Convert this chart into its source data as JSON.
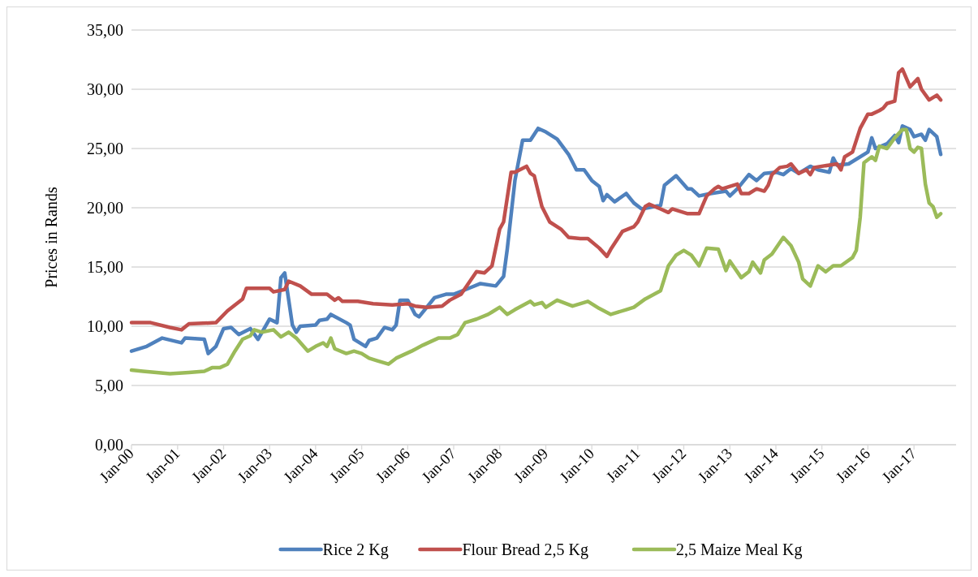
{
  "chart_data": {
    "type": "line",
    "ylabel": "Prices in Rands",
    "xlim": [
      "2000-01",
      "2017-12"
    ],
    "xticks": [
      {
        "value": "2000-01",
        "label": "Jan-00"
      },
      {
        "value": "2001-01",
        "label": "Jan-01"
      },
      {
        "value": "2002-01",
        "label": "Jan-02"
      },
      {
        "value": "2003-01",
        "label": "Jan-03"
      },
      {
        "value": "2004-01",
        "label": "Jan-04"
      },
      {
        "value": "2005-01",
        "label": "Jan-05"
      },
      {
        "value": "2006-01",
        "label": "Jan-06"
      },
      {
        "value": "2007-01",
        "label": "Jan-07"
      },
      {
        "value": "2008-01",
        "label": "Jan-08"
      },
      {
        "value": "2009-01",
        "label": "Jan-09"
      },
      {
        "value": "2010-01",
        "label": "Jan-10"
      },
      {
        "value": "2011-01",
        "label": "Jan-11"
      },
      {
        "value": "2012-01",
        "label": "Jan-12"
      },
      {
        "value": "2013-01",
        "label": "Jan-13"
      },
      {
        "value": "2014-01",
        "label": "Jan-14"
      },
      {
        "value": "2015-01",
        "label": "Jan-15"
      },
      {
        "value": "2016-01",
        "label": "Jan-16"
      },
      {
        "value": "2017-01",
        "label": "Jan-17"
      }
    ],
    "ylim": [
      0,
      35
    ],
    "yticks": [
      {
        "value": 0,
        "label": "0,00"
      },
      {
        "value": 5,
        "label": "5,00"
      },
      {
        "value": 10,
        "label": "10,00"
      },
      {
        "value": 15,
        "label": "15,00"
      },
      {
        "value": 20,
        "label": "20,00"
      },
      {
        "value": 25,
        "label": "25,00"
      },
      {
        "value": 30,
        "label": "30,00"
      },
      {
        "value": 35,
        "label": "35,00"
      }
    ],
    "grid": "y",
    "legend": "bottom",
    "marker": "none",
    "line_style": "solid",
    "series": [
      {
        "name": "Rice 2 Kg",
        "color": "#4f81bd",
        "x": [
          "2000-01",
          "2000-05",
          "2000-09",
          "2001-02",
          "2001-03",
          "2001-08",
          "2001-09",
          "2001-11",
          "2002-01",
          "2002-03",
          "2002-05",
          "2002-08",
          "2002-10",
          "2003-01",
          "2003-03",
          "2003-04",
          "2003-05",
          "2003-07",
          "2003-08",
          "2003-09",
          "2004-01",
          "2004-02",
          "2004-04",
          "2004-05",
          "2004-09",
          "2004-10",
          "2004-11",
          "2005-02",
          "2005-03",
          "2005-05",
          "2005-07",
          "2005-09",
          "2005-10",
          "2005-11",
          "2006-01",
          "2006-03",
          "2006-04",
          "2006-08",
          "2006-11",
          "2007-01",
          "2007-05",
          "2007-08",
          "2007-12",
          "2008-02",
          "2008-03",
          "2008-05",
          "2008-07",
          "2008-09",
          "2008-11",
          "2009-01",
          "2009-04",
          "2009-07",
          "2009-09",
          "2009-11",
          "2010-01",
          "2010-03",
          "2010-04",
          "2010-05",
          "2010-07",
          "2010-10",
          "2010-12",
          "2011-02",
          "2011-07",
          "2011-08",
          "2011-11",
          "2012-02",
          "2012-03",
          "2012-05",
          "2012-08",
          "2012-12",
          "2013-01",
          "2013-03",
          "2013-06",
          "2013-08",
          "2013-10",
          "2014-01",
          "2014-03",
          "2014-05",
          "2014-07",
          "2014-10",
          "2014-12",
          "2015-03",
          "2015-04",
          "2015-05",
          "2015-08",
          "2016-01",
          "2016-02",
          "2016-03",
          "2016-06",
          "2016-08",
          "2016-09",
          "2016-10",
          "2016-12",
          "2017-01",
          "2017-03",
          "2017-04",
          "2017-05",
          "2017-07",
          "2017-08"
        ],
        "values": [
          7.9,
          8.3,
          9.0,
          8.6,
          9.0,
          8.9,
          7.7,
          8.3,
          9.8,
          9.9,
          9.3,
          9.8,
          8.9,
          10.6,
          10.3,
          14.1,
          14.5,
          10.1,
          9.5,
          10.0,
          10.1,
          10.5,
          10.6,
          11.0,
          10.3,
          10.1,
          8.9,
          8.3,
          8.8,
          9.0,
          9.9,
          9.7,
          10.1,
          12.2,
          12.2,
          11.0,
          10.8,
          12.4,
          12.7,
          12.7,
          13.2,
          13.6,
          13.4,
          14.2,
          16.5,
          22.3,
          25.7,
          25.7,
          26.7,
          26.4,
          25.8,
          24.5,
          23.2,
          23.2,
          22.3,
          21.8,
          20.6,
          21.1,
          20.5,
          21.2,
          20.4,
          19.9,
          20.2,
          21.9,
          22.7,
          21.6,
          21.6,
          21.0,
          21.2,
          21.4,
          21.0,
          21.6,
          22.8,
          22.3,
          22.9,
          23.0,
          22.8,
          23.3,
          22.9,
          23.5,
          23.2,
          23.0,
          24.2,
          23.6,
          23.7,
          24.7,
          25.9,
          25.0,
          25.4,
          26.1,
          25.5,
          26.9,
          26.6,
          26.0,
          26.2,
          25.7,
          26.6,
          26.0,
          24.5
        ]
      },
      {
        "name": "Flour Bread 2,5 Kg",
        "color": "#c0504d",
        "x": [
          "2000-01",
          "2000-06",
          "2000-11",
          "2001-02",
          "2001-04",
          "2001-11",
          "2002-02",
          "2002-06",
          "2002-07",
          "2003-01",
          "2003-02",
          "2003-05",
          "2003-06",
          "2003-09",
          "2003-12",
          "2004-04",
          "2004-06",
          "2004-07",
          "2004-08",
          "2004-12",
          "2005-04",
          "2005-09",
          "2006-01",
          "2006-03",
          "2006-06",
          "2006-10",
          "2006-12",
          "2007-03",
          "2007-07",
          "2007-09",
          "2007-11",
          "2008-01",
          "2008-02",
          "2008-04",
          "2008-05",
          "2008-08",
          "2008-09",
          "2008-10",
          "2008-12",
          "2009-02",
          "2009-05",
          "2009-07",
          "2009-10",
          "2009-12",
          "2010-03",
          "2010-05",
          "2010-06",
          "2010-09",
          "2010-12",
          "2011-01",
          "2011-03",
          "2011-04",
          "2011-07",
          "2011-09",
          "2011-10",
          "2012-02",
          "2012-05",
          "2012-07",
          "2012-09",
          "2012-10",
          "2012-11",
          "2013-03",
          "2013-04",
          "2013-06",
          "2013-08",
          "2013-10",
          "2013-11",
          "2013-12",
          "2014-02",
          "2014-04",
          "2014-05",
          "2014-07",
          "2014-09",
          "2014-10",
          "2014-11",
          "2015-03",
          "2015-05",
          "2015-06",
          "2015-07",
          "2015-09",
          "2015-11",
          "2016-01",
          "2016-02",
          "2016-04",
          "2016-05",
          "2016-06",
          "2016-08",
          "2016-09",
          "2016-10",
          "2016-12",
          "2017-02",
          "2017-03",
          "2017-05",
          "2017-07",
          "2017-08"
        ],
        "values": [
          10.3,
          10.3,
          9.9,
          9.7,
          10.2,
          10.3,
          11.3,
          12.3,
          13.2,
          13.2,
          12.9,
          13.1,
          13.8,
          13.4,
          12.7,
          12.7,
          12.2,
          12.4,
          12.1,
          12.1,
          11.9,
          11.8,
          11.9,
          11.7,
          11.6,
          11.7,
          12.2,
          12.7,
          14.6,
          14.5,
          15.1,
          18.2,
          18.8,
          23.0,
          23.0,
          23.5,
          22.9,
          22.7,
          20.1,
          18.8,
          18.2,
          17.5,
          17.4,
          17.4,
          16.6,
          15.9,
          16.5,
          18.0,
          18.4,
          18.8,
          20.1,
          20.3,
          19.9,
          19.6,
          19.9,
          19.5,
          19.5,
          21.0,
          21.6,
          21.8,
          21.6,
          22.0,
          21.2,
          21.2,
          21.6,
          21.4,
          21.9,
          22.8,
          23.4,
          23.5,
          23.7,
          22.9,
          23.2,
          22.8,
          23.4,
          23.6,
          23.7,
          23.2,
          24.3,
          24.7,
          26.7,
          27.9,
          27.9,
          28.2,
          28.4,
          28.8,
          29.0,
          31.4,
          31.7,
          30.2,
          30.9,
          30.0,
          29.1,
          29.5,
          29.1
        ]
      },
      {
        "name": "2,5 Maize Meal Kg",
        "color": "#9bbb59",
        "x": [
          "2000-01",
          "2000-04",
          "2000-11",
          "2001-04",
          "2001-08",
          "2001-10",
          "2001-12",
          "2002-02",
          "2002-04",
          "2002-06",
          "2002-08",
          "2002-09",
          "2002-11",
          "2003-02",
          "2003-04",
          "2003-06",
          "2003-08",
          "2003-11",
          "2004-01",
          "2004-03",
          "2004-04",
          "2004-05",
          "2004-06",
          "2004-09",
          "2004-11",
          "2005-01",
          "2005-03",
          "2005-05",
          "2005-08",
          "2005-10",
          "2006-02",
          "2006-05",
          "2006-09",
          "2006-12",
          "2007-02",
          "2007-04",
          "2007-07",
          "2007-10",
          "2007-11",
          "2008-01",
          "2008-03",
          "2008-05",
          "2008-09",
          "2008-10",
          "2008-12",
          "2009-01",
          "2009-04",
          "2009-08",
          "2009-12",
          "2010-03",
          "2010-06",
          "2010-10",
          "2010-12",
          "2011-03",
          "2011-07",
          "2011-09",
          "2011-11",
          "2012-01",
          "2012-03",
          "2012-05",
          "2012-07",
          "2012-10",
          "2012-12",
          "2013-01",
          "2013-04",
          "2013-06",
          "2013-07",
          "2013-09",
          "2013-10",
          "2013-12",
          "2014-03",
          "2014-05",
          "2014-07",
          "2014-08",
          "2014-10",
          "2014-12",
          "2015-02",
          "2015-04",
          "2015-06",
          "2015-09",
          "2015-10",
          "2015-11",
          "2015-12",
          "2016-02",
          "2016-03",
          "2016-04",
          "2016-06",
          "2016-08",
          "2016-10",
          "2016-11",
          "2016-12",
          "2017-01",
          "2017-02",
          "2017-03",
          "2017-04",
          "2017-05",
          "2017-06",
          "2017-07",
          "2017-08"
        ],
        "values": [
          6.3,
          6.2,
          6.0,
          6.1,
          6.2,
          6.5,
          6.5,
          6.8,
          7.9,
          8.9,
          9.2,
          9.7,
          9.5,
          9.7,
          9.1,
          9.5,
          9.0,
          7.9,
          8.3,
          8.6,
          8.3,
          9.0,
          8.1,
          7.7,
          7.9,
          7.7,
          7.3,
          7.1,
          6.8,
          7.3,
          7.9,
          8.4,
          9.0,
          9.0,
          9.3,
          10.3,
          10.6,
          11.0,
          11.2,
          11.6,
          11.0,
          11.4,
          12.1,
          11.8,
          12.0,
          11.6,
          12.2,
          11.7,
          12.1,
          11.5,
          11.0,
          11.4,
          11.6,
          12.3,
          13.0,
          15.1,
          16.0,
          16.4,
          16.0,
          15.1,
          16.6,
          16.5,
          14.7,
          15.5,
          14.1,
          14.6,
          15.4,
          14.5,
          15.6,
          16.1,
          17.5,
          16.8,
          15.4,
          14.0,
          13.4,
          15.1,
          14.6,
          15.1,
          15.1,
          15.8,
          16.4,
          19.2,
          23.8,
          24.3,
          24.0,
          25.2,
          25.0,
          25.9,
          26.6,
          26.6,
          25.0,
          24.7,
          25.1,
          25.0,
          22.0,
          20.4,
          20.1,
          19.2,
          19.5
        ]
      }
    ]
  }
}
